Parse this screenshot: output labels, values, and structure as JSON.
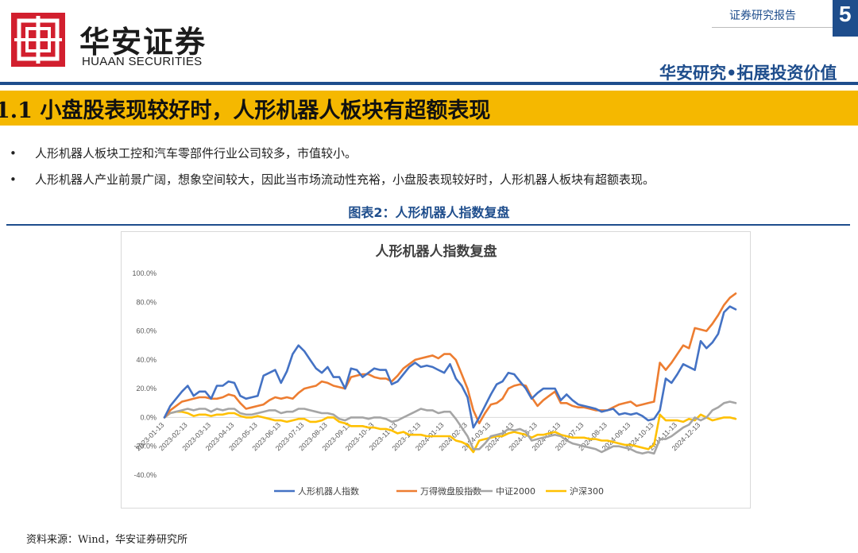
{
  "header": {
    "logo_cn": "华安证券",
    "logo_en": "HUAAN SECURITIES",
    "report_type": "证券研究报告",
    "page_number": "5",
    "slogan": "华安研究•拓展投资价值",
    "brand_color": "#1e4d8c",
    "accent_color": "#f5b800",
    "logo_color": "#d21f2e"
  },
  "section": {
    "title": "1.1 小盘股表现较好时，人形机器人板块有超额表现"
  },
  "bullets": [
    "人形机器人板块工控和汽车零部件行业公司较多，市值较小。",
    "人形机器人产业前景广阔，想象空间较大，因此当市场流动性充裕，小盘股表现较好时，人形机器人板块有超额表现。"
  ],
  "figure": {
    "caption": "图表2：人形机器人指数复盘",
    "source": "资料来源：Wind，华安证券研究所"
  },
  "chart_data": {
    "type": "line",
    "title": "人形机器人指数复盘",
    "xlabel": "",
    "ylabel": "",
    "ylim": [
      -40,
      100
    ],
    "y_ticks": [
      "-40.0%",
      "-20.0%",
      "0.0%",
      "20.0%",
      "40.0%",
      "60.0%",
      "80.0%",
      "100.0%"
    ],
    "y_tick_values": [
      -40,
      -20,
      0,
      20,
      40,
      60,
      80,
      100
    ],
    "x_ticks": [
      "2023-01-13",
      "2023-02-13",
      "2023-03-13",
      "2023-04-13",
      "2023-05-13",
      "2023-06-13",
      "2023-07-13",
      "2023-08-13",
      "2023-09-13",
      "2023-10-13",
      "2023-11-13",
      "2023-12-13",
      "2024-01-13",
      "2024-02-13",
      "2024-03-13",
      "2024-04-13",
      "2024-05-13",
      "2024-06-13",
      "2024-07-13",
      "2024-08-13",
      "2024-09-13",
      "2024-10-13",
      "2024-11-13",
      "2024-12-13"
    ],
    "x_tick_index": [
      0,
      4,
      8,
      12,
      16,
      20,
      24,
      28,
      32,
      36,
      40,
      44,
      48,
      52,
      56,
      60,
      64,
      68,
      72,
      76,
      80,
      84,
      88,
      92
    ],
    "grid": false,
    "legend": "bottom",
    "series": [
      {
        "name": "人形机器人指数",
        "color": "#4472c4",
        "values": [
          0,
          8,
          13,
          18,
          22,
          15,
          18,
          18,
          13,
          22,
          22,
          25,
          24,
          15,
          13,
          14,
          15,
          29,
          31,
          33,
          24,
          32,
          44,
          50,
          46,
          40,
          34,
          31,
          35,
          28,
          28,
          20,
          34,
          33,
          28,
          31,
          34,
          33,
          33,
          23,
          25,
          30,
          35,
          38,
          35,
          36,
          35,
          33,
          31,
          37,
          27,
          22,
          14,
          -7,
          0,
          8,
          16,
          23,
          25,
          31,
          30,
          25,
          20,
          13,
          17,
          20,
          20,
          20,
          12,
          16,
          12,
          9,
          8,
          7,
          6,
          4,
          5,
          6,
          2,
          3,
          2,
          3,
          1,
          -2,
          -1,
          5,
          27,
          24,
          30,
          37,
          35,
          33,
          53,
          48,
          52,
          58,
          73,
          77,
          75
        ]
      },
      {
        "name": "万得微盘股指数",
        "color": "#ed7d31",
        "values": [
          0,
          5,
          8,
          11,
          12,
          13,
          14,
          14,
          13,
          13,
          14,
          16,
          15,
          10,
          6,
          7,
          8,
          9,
          12,
          14,
          13,
          14,
          13,
          17,
          20,
          21,
          22,
          25,
          24,
          22,
          21,
          20,
          28,
          29,
          30,
          30,
          28,
          27,
          27,
          25,
          29,
          34,
          37,
          40,
          41,
          42,
          43,
          41,
          44,
          44,
          40,
          30,
          20,
          5,
          -4,
          3,
          9,
          10,
          13,
          20,
          22,
          23,
          22,
          14,
          8,
          12,
          15,
          18,
          10,
          10,
          8,
          7,
          7,
          6,
          5,
          5,
          5,
          7,
          9,
          10,
          11,
          8,
          9,
          10,
          11,
          38,
          33,
          38,
          44,
          50,
          48,
          62,
          61,
          60,
          65,
          71,
          78,
          83,
          86
        ]
      },
      {
        "name": "中证2000",
        "color": "#a5a5a5",
        "values": [
          0,
          3,
          4,
          5,
          6,
          5,
          6,
          6,
          4,
          6,
          5,
          6,
          6,
          3,
          2,
          2,
          3,
          4,
          5,
          5,
          3,
          4,
          4,
          6,
          6,
          5,
          4,
          3,
          3,
          2,
          -1,
          -2,
          0,
          0,
          0,
          -1,
          0,
          0,
          -1,
          -3,
          -2,
          0,
          2,
          4,
          6,
          5,
          5,
          3,
          4,
          4,
          -1,
          -7,
          -13,
          -22,
          -22,
          -18,
          -13,
          -12,
          -11,
          -8,
          -9,
          -8,
          -10,
          -16,
          -15,
          -14,
          -13,
          -12,
          -13,
          -16,
          -18,
          -19,
          -20,
          -21,
          -22,
          -24,
          -22,
          -20,
          -20,
          -21,
          -22,
          -24,
          -25,
          -24,
          -25,
          -15,
          -15,
          -13,
          -10,
          -7,
          -5,
          0,
          -2,
          0,
          5,
          7,
          10,
          11,
          10
        ]
      },
      {
        "name": "沪深300",
        "color": "#ffc000",
        "values": [
          0,
          3,
          4,
          4,
          3,
          1,
          2,
          2,
          1,
          2,
          2,
          3,
          3,
          1,
          0,
          0,
          1,
          0,
          -1,
          -2,
          -2,
          -3,
          -2,
          -1,
          -1,
          -3,
          -3,
          -2,
          0,
          0,
          -3,
          -4,
          -6,
          -6,
          -6,
          -7,
          -7,
          -8,
          -8,
          -9,
          -11,
          -10,
          -12,
          -12,
          -12,
          -13,
          -13,
          -13,
          -13,
          -13,
          -16,
          -17,
          -19,
          -24,
          -16,
          -15,
          -14,
          -13,
          -13,
          -11,
          -10,
          -11,
          -12,
          -14,
          -12,
          -12,
          -11,
          -10,
          -12,
          -13,
          -14,
          -14,
          -14,
          -15,
          -15,
          -16,
          -16,
          -17,
          -18,
          -19,
          -19,
          -20,
          -21,
          -22,
          -19,
          2,
          -2,
          -2,
          -2,
          -3,
          -1,
          -2,
          2,
          0,
          -2,
          -1,
          0,
          0,
          -1
        ]
      }
    ]
  }
}
